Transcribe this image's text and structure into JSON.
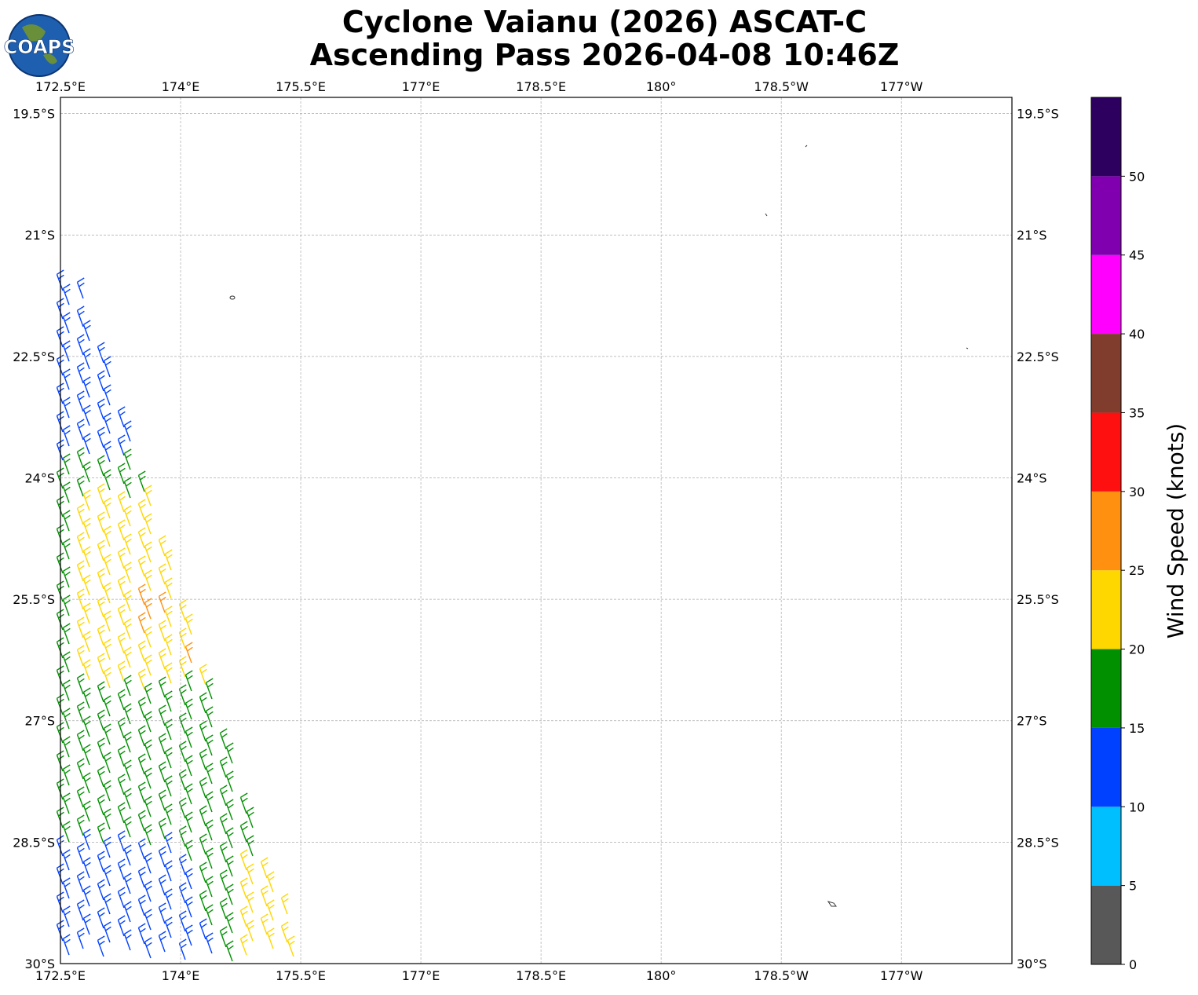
{
  "header": {
    "logo": "COAPS",
    "title_line1": "Cyclone Vaianu (2026) ASCAT-C",
    "title_line2": "Ascending Pass 2026-04-08 10:46Z"
  },
  "map": {
    "xlim": [
      172.5,
      184.38
    ],
    "ylim": [
      -30,
      -19.3
    ],
    "lon_ticks": [
      {
        "value": 172.5,
        "label": "172.5°E"
      },
      {
        "value": 174,
        "label": "174°E"
      },
      {
        "value": 175.5,
        "label": "175.5°E"
      },
      {
        "value": 177,
        "label": "177°E"
      },
      {
        "value": 178.5,
        "label": "178.5°E"
      },
      {
        "value": 180,
        "label": "180°"
      },
      {
        "value": 181.5,
        "label": "178.5°W"
      },
      {
        "value": 183,
        "label": "177°W"
      }
    ],
    "lat_ticks": [
      {
        "value": -19.5,
        "label": "19.5°S"
      },
      {
        "value": -21,
        "label": "21°S"
      },
      {
        "value": -22.5,
        "label": "22.5°S"
      },
      {
        "value": -24,
        "label": "24°S"
      },
      {
        "value": -25.5,
        "label": "25.5°S"
      },
      {
        "value": -27,
        "label": "27°S"
      },
      {
        "value": -28.5,
        "label": "28.5°S"
      },
      {
        "value": -30,
        "label": "30°S"
      }
    ],
    "grid": true
  },
  "colorbar": {
    "label": "Wind Speed (knots)",
    "lim": [
      0,
      55
    ],
    "ticks": [
      0,
      5,
      10,
      15,
      20,
      25,
      30,
      35,
      40,
      45,
      50
    ],
    "colors": [
      "#585858",
      "#00bfff",
      "#0040ff",
      "#009000",
      "#ffd700",
      "#ff9010",
      "#ff1010",
      "#803c2c",
      "#ff00ff",
      "#8000b0",
      "#2d0060"
    ]
  }
}
